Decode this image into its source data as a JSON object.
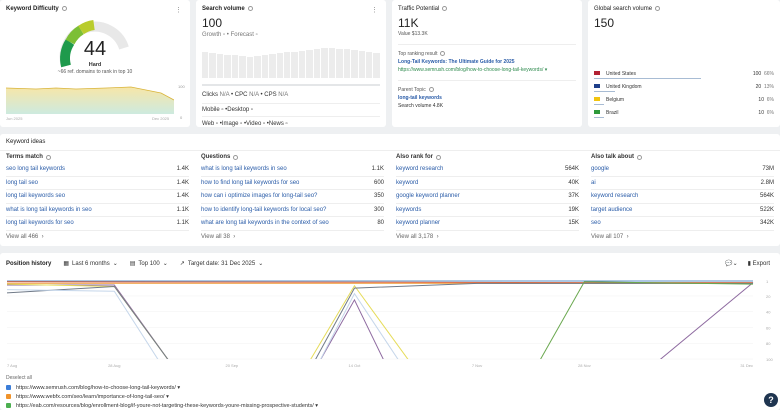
{
  "kd": {
    "title": "Keyword Difficulty",
    "value": "44",
    "label": "Hard",
    "sub": "~66 ref. domains to rank in top 10",
    "trend_start": "Jun 2025",
    "trend_end": "Dec 2025",
    "y_max": "100",
    "y_min": "0",
    "level_percent": 44
  },
  "sv": {
    "title": "Search volume",
    "value": "100",
    "growth": "Growth",
    "forecast": "Forecast",
    "clicks": "Clicks",
    "cpc": "CPC",
    "cps": "CPS",
    "na": "N/A",
    "mobile": "Mobile",
    "desktop": "Desktop",
    "web": "Web",
    "image": "Image",
    "video": "Video",
    "news": "News",
    "bars": [
      60,
      58,
      57,
      55,
      53,
      51,
      50,
      52,
      54,
      56,
      58,
      60,
      62,
      64,
      66,
      68,
      70,
      70,
      69,
      67,
      65,
      63,
      61,
      59
    ]
  },
  "tp": {
    "title": "Traffic Potential",
    "value": "11K",
    "value_line": "Value $13.3K",
    "top_label": "Top ranking result",
    "top_title": "Long-Tail Keywords: The Ultimate Guide for 2025",
    "top_url": "https://www.semrush.com/blog/how-to-choose-long-tail-keywords/",
    "parent_label": "Parent Topic",
    "parent": "long-tail keywords",
    "parent_vol": "Search volume 4.8K"
  },
  "gsv": {
    "title": "Global search volume",
    "value": "150",
    "countries": [
      {
        "name": "United States",
        "vol": "100",
        "pct": "66%",
        "share": 66
      },
      {
        "name": "United Kingdom",
        "vol": "20",
        "pct": "13%",
        "share": 13
      },
      {
        "name": "Belgium",
        "vol": "10",
        "pct": "6%",
        "share": 6
      },
      {
        "name": "Brazil",
        "vol": "10",
        "pct": "6%",
        "share": 6
      }
    ]
  },
  "ideas": {
    "title": "Keyword ideas",
    "cols": [
      {
        "head": "Terms match",
        "rows": [
          [
            "seo long tail keywords",
            "1.4K"
          ],
          [
            "long tail seo",
            "1.4K"
          ],
          [
            "long tail keywords seo",
            "1.4K"
          ],
          [
            "what is long tail keywords in seo",
            "1.1K"
          ],
          [
            "long tail keywords for seo",
            "1.1K"
          ]
        ],
        "view": "View all 466"
      },
      {
        "head": "Questions",
        "rows": [
          [
            "what is long tail keywords in seo",
            "1.1K"
          ],
          [
            "how to find long tail keywords for seo",
            "600"
          ],
          [
            "how can i optimize images for long-tail seo?",
            "350"
          ],
          [
            "how to identify long-tail keywords for local seo?",
            "300"
          ],
          [
            "what are long tail keywords in the context of seo",
            "80"
          ]
        ],
        "view": "View all 38"
      },
      {
        "head": "Also rank for",
        "rows": [
          [
            "keyword research",
            "564K"
          ],
          [
            "keyword",
            "40K"
          ],
          [
            "google keyword planner",
            "37K"
          ],
          [
            "keywords",
            "19K"
          ],
          [
            "keyword planner",
            "15K"
          ]
        ],
        "view": "View all 3,178"
      },
      {
        "head": "Also talk about",
        "rows": [
          [
            "google",
            "73M"
          ],
          [
            "ai",
            "2.8M"
          ],
          [
            "keyword research",
            "564K"
          ],
          [
            "target audience",
            "522K"
          ],
          [
            "seo",
            "342K"
          ]
        ],
        "view": "View all 107"
      }
    ]
  },
  "ph": {
    "title": "Position history",
    "period": "Last 6 months",
    "top": "Top 100",
    "target": "Target date: 31 Dec 2025",
    "export": "Export",
    "deselect": "Deselect all",
    "legend": [
      {
        "url": "https://www.semrush.com/blog/how-to-choose-long-tail-keywords/",
        "color": "#3b7dd8"
      },
      {
        "url": "https://www.webfx.com/seo/learn/importance-of-long-tail-seo/",
        "color": "#f0932b"
      },
      {
        "url": "https://eab.com/resources/blog/enrollment-blog/if-youre-not-targeting-these-keywords-youre-missing-prospective-students/",
        "color": "#4caf50"
      }
    ]
  },
  "chart_data": {
    "type": "line",
    "y_reversed": true,
    "ylim": [
      1,
      100
    ],
    "yticks": [
      "1",
      "20",
      "40",
      "60",
      "80",
      "100"
    ],
    "xticks": [
      "7 Aug",
      "28 Aug",
      "20 Sep",
      "14 Oct",
      "7 Nov",
      "28 Nov",
      "31 Dec"
    ],
    "xtick_days": [
      0,
      21,
      44,
      68,
      92,
      113,
      146
    ],
    "series": [
      {
        "color": "#5b8fc7",
        "points": [
          [
            0,
            1
          ],
          [
            146,
            1
          ]
        ]
      },
      {
        "color": "#e0603a",
        "points": [
          [
            0,
            2
          ],
          [
            113,
            3
          ],
          [
            146,
            3
          ]
        ]
      },
      {
        "color": "#f0a850",
        "points": [
          [
            0,
            4
          ],
          [
            146,
            4
          ]
        ]
      },
      {
        "color": "#8e6aa0",
        "points": [
          [
            0,
            6
          ],
          [
            21,
            6
          ],
          [
            32,
            100
          ],
          null,
          [
            61,
            100
          ],
          [
            68,
            25
          ],
          [
            74,
            100
          ],
          null,
          [
            127,
            100
          ],
          [
            146,
            3
          ]
        ]
      },
      {
        "color": "#e6dc5a",
        "points": [
          [
            0,
            5
          ],
          [
            21,
            8
          ],
          [
            32,
            100
          ],
          null,
          [
            59,
            100
          ],
          [
            68,
            7
          ],
          [
            79,
            100
          ]
        ]
      },
      {
        "color": "#707a88",
        "points": [
          [
            0,
            16
          ],
          [
            21,
            8
          ],
          [
            32,
            100
          ],
          null,
          [
            60,
            100
          ],
          [
            68,
            10
          ],
          [
            92,
            4
          ],
          [
            146,
            4
          ]
        ]
      },
      {
        "color": "#c5d6ea",
        "points": [
          [
            0,
            12
          ],
          [
            21,
            14
          ],
          [
            30,
            100
          ],
          null,
          [
            61,
            100
          ],
          [
            68,
            17
          ],
          [
            77,
            100
          ]
        ]
      },
      {
        "color": "#6aa84f",
        "points": [
          [
            104,
            100
          ],
          [
            113,
            2
          ],
          [
            146,
            5
          ]
        ]
      }
    ]
  }
}
